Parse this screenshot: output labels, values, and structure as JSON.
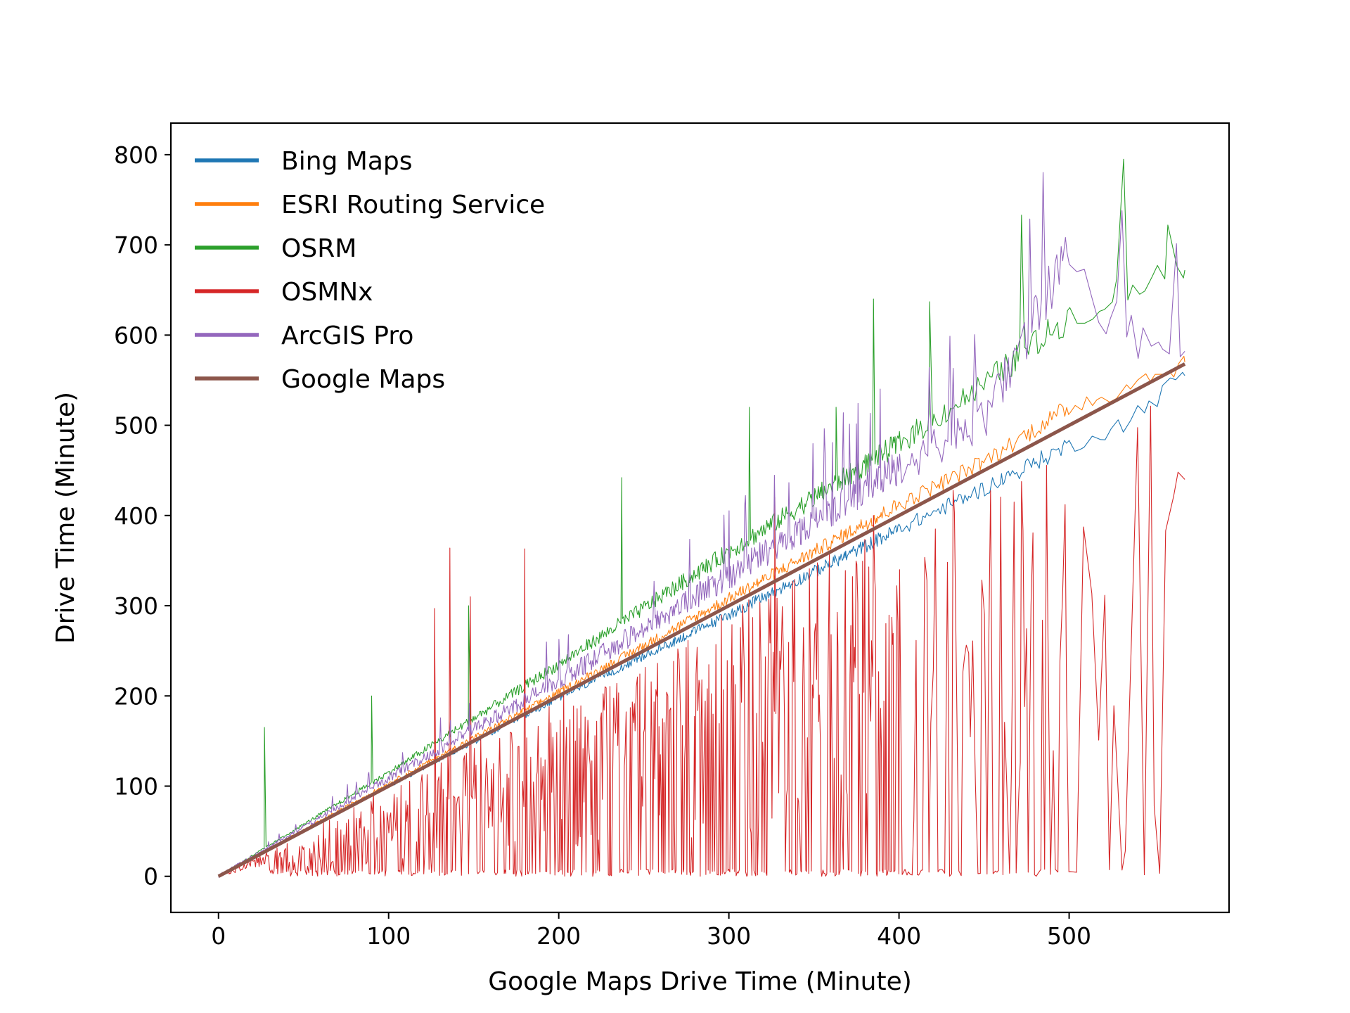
{
  "chart_data": {
    "type": "line",
    "title": "",
    "xlabel": "Google Maps Drive Time (Minute)",
    "ylabel": "Drive Time (Minute)",
    "xlim": [
      -28,
      594
    ],
    "ylim": [
      -40,
      835
    ],
    "xticks": [
      0,
      100,
      200,
      300,
      400,
      500
    ],
    "yticks": [
      0,
      100,
      200,
      300,
      400,
      500,
      600,
      700,
      800
    ],
    "grid": false,
    "legend_position": "top-left",
    "x_range": [
      0,
      568
    ],
    "series": [
      {
        "name": "Bing Maps",
        "color": "#1f77b4",
        "values_at_x": [
          [
            0,
            0
          ],
          [
            100,
            100
          ],
          [
            200,
            198
          ],
          [
            300,
            290
          ],
          [
            400,
            385
          ],
          [
            450,
            430
          ],
          [
            500,
            478
          ],
          [
            530,
            500
          ],
          [
            568,
            555
          ]
        ]
      },
      {
        "name": "ESRI Routing Service",
        "color": "#ff7f0e",
        "values_at_x": [
          [
            0,
            0
          ],
          [
            100,
            103
          ],
          [
            200,
            204
          ],
          [
            300,
            308
          ],
          [
            400,
            412
          ],
          [
            450,
            460
          ],
          [
            500,
            520
          ],
          [
            530,
            540
          ],
          [
            568,
            570
          ]
        ]
      },
      {
        "name": "OSRM",
        "color": "#2ca02c",
        "values_at_x": [
          [
            0,
            0
          ],
          [
            100,
            115
          ],
          [
            200,
            235
          ],
          [
            300,
            360
          ],
          [
            400,
            480
          ],
          [
            450,
            545
          ],
          [
            500,
            620
          ],
          [
            530,
            650
          ],
          [
            568,
            672
          ]
        ],
        "spikes": [
          [
            27,
            165
          ],
          [
            90,
            200
          ],
          [
            147,
            300
          ],
          [
            237,
            442
          ],
          [
            312,
            520
          ],
          [
            363,
            520
          ],
          [
            385,
            640
          ],
          [
            418,
            637
          ],
          [
            472,
            733
          ],
          [
            532,
            795
          ],
          [
            558,
            722
          ]
        ]
      },
      {
        "name": "OSMNx",
        "color": "#d62728",
        "values_at_x": [
          [
            0,
            0
          ],
          [
            100,
            70
          ],
          [
            200,
            120
          ],
          [
            300,
            170
          ],
          [
            400,
            200
          ],
          [
            450,
            220
          ],
          [
            500,
            230
          ],
          [
            568,
            440
          ]
        ],
        "spikes": [
          [
            127,
            297
          ],
          [
            136,
            364
          ],
          [
            148,
            310
          ],
          [
            180,
            363
          ],
          [
            327,
            420
          ],
          [
            385,
            400
          ],
          [
            533,
            28
          ],
          [
            550,
            78
          ],
          [
            564,
            448
          ]
        ]
      },
      {
        "name": "ArcGIS Pro",
        "color": "#9467bd",
        "values_at_x": [
          [
            0,
            0
          ],
          [
            100,
            108
          ],
          [
            200,
            215
          ],
          [
            300,
            330
          ],
          [
            400,
            450
          ],
          [
            450,
            500
          ],
          [
            497,
            677
          ],
          [
            530,
            600
          ],
          [
            568,
            582
          ]
        ]
      },
      {
        "name": "Google Maps",
        "color": "#8c564b",
        "values_at_x": [
          [
            0,
            0
          ],
          [
            568,
            568
          ]
        ]
      }
    ]
  }
}
